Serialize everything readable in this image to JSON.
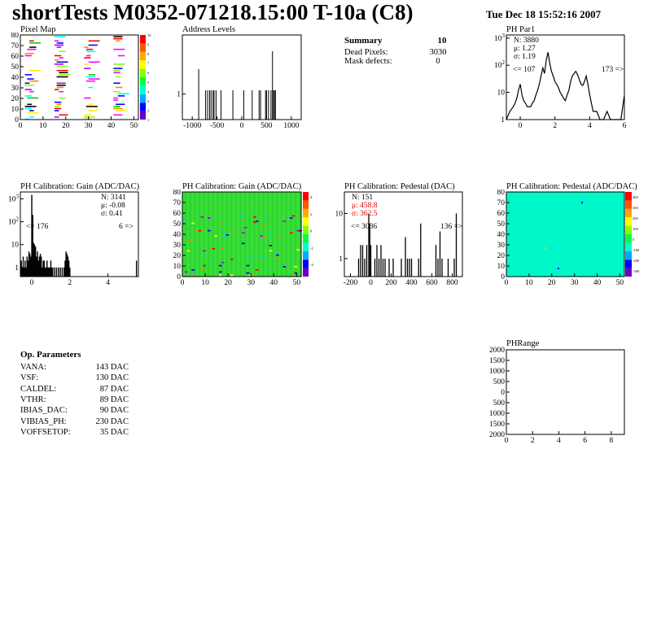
{
  "header": {
    "title": "shortTests M0352-071218.15:00 T-10a (C8)",
    "date": "Tue Dec 18 15:52:16 2007"
  },
  "summary": {
    "heading": "Summary",
    "heading_value": "10",
    "rows": [
      {
        "label": "Dead Pixels:",
        "value": "3030"
      },
      {
        "label": "Mask defects:",
        "value": "0"
      }
    ]
  },
  "op_params": {
    "heading": "Op. Parameters",
    "rows": [
      {
        "label": "VANA:",
        "value": "143 DAC"
      },
      {
        "label": "VSF:",
        "value": "130 DAC"
      },
      {
        "label": "CALDEL:",
        "value": "87 DAC"
      },
      {
        "label": "VTHR:",
        "value": "89 DAC"
      },
      {
        "label": "IBIAS_DAC:",
        "value": "90 DAC"
      },
      {
        "label": "VIBIAS_PH:",
        "value": "230 DAC"
      },
      {
        "label": "VOFFSETOP:",
        "value": "35 DAC"
      }
    ]
  },
  "colors": {
    "stats_red": "#e00000",
    "gain_bg": "#33dd33",
    "pedestal_bg": "#00f7c7"
  },
  "chart_data": [
    {
      "id": "pixel-map",
      "type": "heatmap",
      "title": "Pixel Map",
      "xlim": [
        0,
        52
      ],
      "ylim": [
        0,
        80
      ],
      "xticks": [
        0,
        10,
        20,
        30,
        40,
        50
      ],
      "yticks": [
        0,
        10,
        20,
        30,
        40,
        50,
        60,
        70,
        80
      ],
      "colorbar_ticks": [
        1,
        2,
        3,
        4,
        5,
        6,
        7,
        8,
        9,
        10
      ],
      "filled_column_bands": [
        [
          2,
          8
        ],
        [
          15,
          21
        ],
        [
          28,
          34
        ],
        [
          41,
          47
        ]
      ]
    },
    {
      "id": "address-levels",
      "type": "bar",
      "title": "Address Levels",
      "xlim": [
        -1200,
        1200
      ],
      "xticks": [
        -1000,
        -500,
        0,
        500,
        1000
      ],
      "ylog": true,
      "yticks": [
        1
      ],
      "x": [
        -870,
        -730,
        -690,
        -650,
        -620,
        -580,
        -560,
        -520,
        -420,
        -180,
        40,
        210,
        350,
        380,
        480,
        500,
        540,
        590,
        620,
        640,
        660,
        680
      ],
      "values": [
        2,
        1,
        1,
        1,
        1,
        1,
        1,
        1,
        1,
        1,
        1,
        1,
        1,
        1,
        1,
        1,
        1,
        1,
        3,
        1,
        1,
        1
      ]
    },
    {
      "id": "ph-par1",
      "type": "line",
      "title": "PH Par1",
      "xlim": [
        -0.8,
        6
      ],
      "xticks": [
        0,
        2,
        4,
        6
      ],
      "ylog": true,
      "ylim": [
        1,
        1300
      ],
      "yticks": [
        1,
        10,
        100,
        1000
      ],
      "stats": {
        "entries": "N: 3880",
        "mean": "μ: 1.27",
        "sigma": "σ: 1.19"
      },
      "underflow": "<= 107",
      "overflow": "173 =>",
      "x": [
        -0.8,
        -0.6,
        -0.4,
        -0.3,
        -0.2,
        -0.1,
        0.0,
        0.1,
        0.2,
        0.3,
        0.4,
        0.5,
        0.6,
        0.7,
        0.8,
        0.9,
        1.0,
        1.1,
        1.2,
        1.3,
        1.4,
        1.5,
        1.6,
        1.7,
        1.8,
        1.9,
        2.0,
        2.1,
        2.2,
        2.3,
        2.4,
        2.5,
        2.6,
        2.7,
        2.8,
        2.9,
        3.0,
        3.1,
        3.2,
        3.3,
        3.4,
        3.5,
        3.6,
        3.7,
        3.8,
        3.9,
        4.0,
        4.1,
        4.2,
        4.4,
        4.6,
        4.8,
        5.0,
        5.2,
        5.4,
        5.6,
        5.8,
        6.0
      ],
      "values": [
        1,
        2,
        3,
        4,
        6,
        12,
        20,
        8,
        5,
        4,
        3,
        3,
        3,
        4,
        5,
        8,
        12,
        20,
        40,
        80,
        50,
        150,
        300,
        120,
        60,
        40,
        25,
        20,
        15,
        10,
        8,
        6,
        5,
        8,
        12,
        25,
        40,
        50,
        60,
        45,
        30,
        20,
        18,
        25,
        40,
        20,
        8,
        4,
        2,
        2,
        1,
        1,
        2,
        1,
        1,
        1,
        1,
        8
      ]
    },
    {
      "id": "gain-1d",
      "type": "bar",
      "title": "PH Calibration: Gain (ADC/DAC)",
      "xlim": [
        -0.6,
        5.6
      ],
      "xticks": [
        0,
        2,
        4
      ],
      "ylog": true,
      "ylim": [
        0.4,
        2000
      ],
      "yticks": [
        1,
        10,
        100,
        1000
      ],
      "stats": {
        "entries": "N: 3141",
        "mean": "μ: -0.08",
        "sigma": "σ: 0.41"
      },
      "underflow": "<= 176",
      "overflow": "6 =>",
      "x": [
        -0.55,
        -0.5,
        -0.45,
        -0.4,
        -0.35,
        -0.3,
        -0.25,
        -0.2,
        -0.15,
        -0.1,
        -0.05,
        0.0,
        0.05,
        0.1,
        0.15,
        0.2,
        0.25,
        0.3,
        0.35,
        0.4,
        0.45,
        0.5,
        0.55,
        0.6,
        0.65,
        0.7,
        0.75,
        0.8,
        0.85,
        0.9,
        0.95,
        1.0,
        1.05,
        1.1,
        1.2,
        1.3,
        1.4,
        1.5,
        1.6,
        1.7,
        1.75,
        1.8,
        1.85,
        1.9,
        1.95,
        2.0,
        5.5
      ],
      "values": [
        2,
        1,
        3,
        1,
        2,
        1,
        3,
        2,
        5,
        4,
        3,
        1500,
        200,
        12,
        10,
        8,
        3,
        5,
        2,
        3,
        4,
        3,
        1,
        2,
        2,
        1,
        1,
        2,
        1,
        1,
        1,
        2,
        1,
        1,
        1,
        1,
        1,
        1,
        1,
        1,
        2,
        5,
        4,
        3,
        2,
        1,
        2
      ]
    },
    {
      "id": "gain-map",
      "type": "heatmap",
      "title": "PH Calibration: Gain (ADC/DAC)",
      "xlim": [
        0,
        52
      ],
      "ylim": [
        0,
        80
      ],
      "xticks": [
        0,
        10,
        20,
        30,
        40,
        50
      ],
      "yticks": [
        0,
        10,
        20,
        30,
        40,
        50,
        60,
        70,
        80
      ],
      "colorbar_ticks": [
        4,
        2,
        0,
        -2,
        -4
      ]
    },
    {
      "id": "pedestal-1d",
      "type": "bar",
      "title": "PH Calibration: Pedestal (DAC)",
      "xlim": [
        -260,
        900
      ],
      "xticks": [
        -200,
        0,
        200,
        400,
        600,
        800
      ],
      "ylog": true,
      "ylim": [
        0.4,
        30
      ],
      "yticks": [
        1,
        10
      ],
      "stats": {
        "entries": "N:  151",
        "mean": "μ: 458.8",
        "sigma": "σ: 362.5"
      },
      "underflow": "<= 3036",
      "overflow": "136 =>",
      "x": [
        -120,
        -100,
        -80,
        -60,
        -40,
        -20,
        -10,
        0,
        40,
        60,
        80,
        100,
        120,
        140,
        180,
        220,
        300,
        340,
        360,
        380,
        400,
        470,
        490,
        640,
        660,
        680,
        700,
        760,
        820,
        840
      ],
      "values": [
        1,
        2,
        2,
        1,
        2,
        10,
        6,
        2,
        1,
        2,
        1,
        2,
        1,
        1,
        1,
        1,
        1,
        3,
        1,
        1,
        1,
        1,
        6,
        2,
        1,
        4,
        1,
        1,
        1,
        10
      ]
    },
    {
      "id": "pedestal-map",
      "type": "heatmap",
      "title": "PH Calibration: Pedestal (ADC/DAC)",
      "xlim": [
        0,
        52
      ],
      "ylim": [
        0,
        80
      ],
      "xticks": [
        0,
        10,
        20,
        30,
        40,
        50
      ],
      "yticks": [
        0,
        10,
        20,
        30,
        40,
        50,
        60,
        70,
        80
      ],
      "colorbar_ticks": [
        400,
        300,
        200,
        100,
        0,
        -100,
        -200,
        -300
      ]
    },
    {
      "id": "ph-range",
      "type": "scatter",
      "title": "PHRange",
      "xlim": [
        0,
        9
      ],
      "xticks": [
        0,
        2,
        4,
        6,
        8
      ],
      "ylim": [
        -2000,
        2000
      ],
      "yticks": [
        2000,
        1500,
        1000,
        500,
        0,
        500,
        1000,
        1500,
        2000
      ]
    }
  ]
}
